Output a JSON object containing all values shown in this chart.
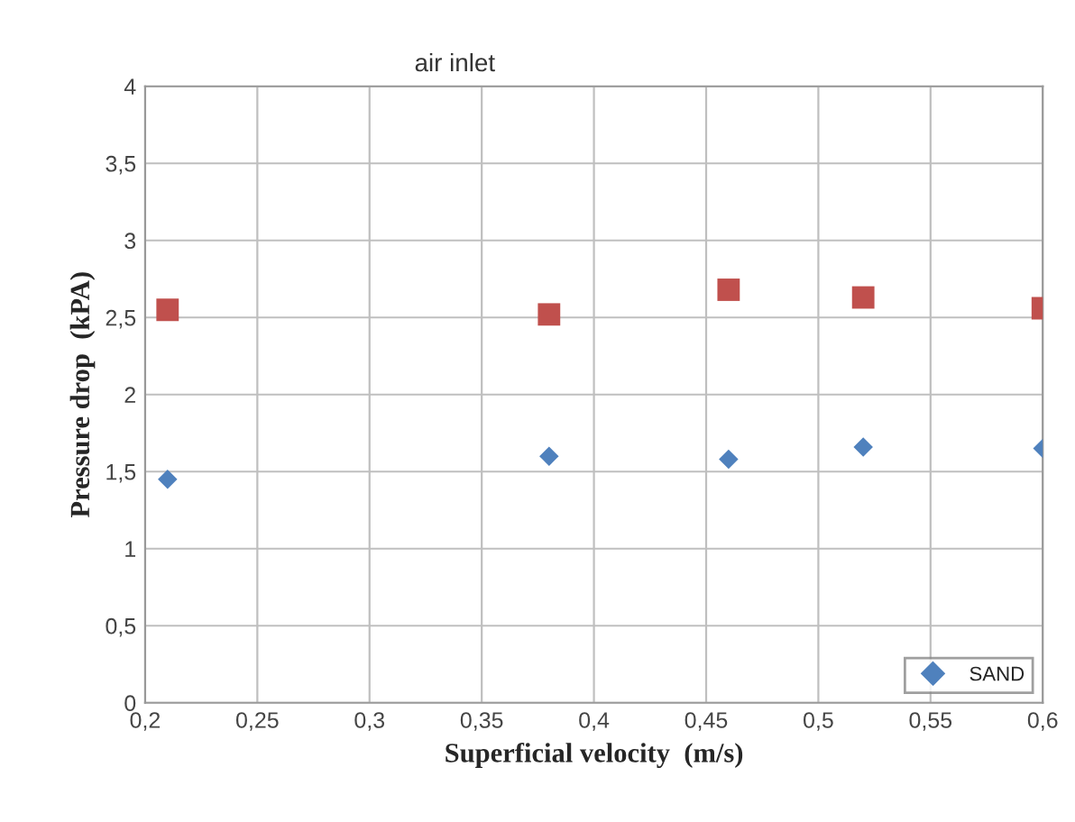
{
  "chart_data": {
    "type": "scatter",
    "title": "air inlet",
    "xlabel": "Superficial velocity  (m/s)",
    "ylabel": "Pressure drop  (kPA)",
    "series": [
      {
        "color": "#c0504d",
        "marker": "square",
        "x": [
          0.21,
          0.38,
          0.46,
          0.52,
          0.6
        ],
        "values": [
          2.55,
          2.52,
          2.68,
          2.63,
          2.56
        ]
      },
      {
        "name": "SAND",
        "color": "#4f81bd",
        "marker": "diamond",
        "x": [
          0.21,
          0.38,
          0.46,
          0.52,
          0.6
        ],
        "values": [
          1.45,
          1.6,
          1.58,
          1.66,
          1.65
        ]
      }
    ],
    "xlim": [
      0.2,
      0.6
    ],
    "ylim": [
      0,
      4
    ],
    "xticks": [
      {
        "value": 0.2,
        "label": "0,2"
      },
      {
        "value": 0.25,
        "label": "0,25"
      },
      {
        "value": 0.3,
        "label": "0,3"
      },
      {
        "value": 0.35,
        "label": "0,35"
      },
      {
        "value": 0.4,
        "label": "0,4"
      },
      {
        "value": 0.45,
        "label": "0,45"
      },
      {
        "value": 0.5,
        "label": "0,5"
      },
      {
        "value": 0.55,
        "label": "0,55"
      },
      {
        "value": 0.6,
        "label": "0,6"
      }
    ],
    "yticks": [
      0,
      {
        "value": 0.5,
        "label": "0,5"
      },
      1,
      {
        "value": 1.5,
        "label": "1,5"
      },
      2,
      {
        "value": 2.5,
        "label": "2,5"
      },
      3,
      {
        "value": 3.5,
        "label": "3,5"
      },
      4
    ],
    "grid": true,
    "legend": "bottom right"
  }
}
